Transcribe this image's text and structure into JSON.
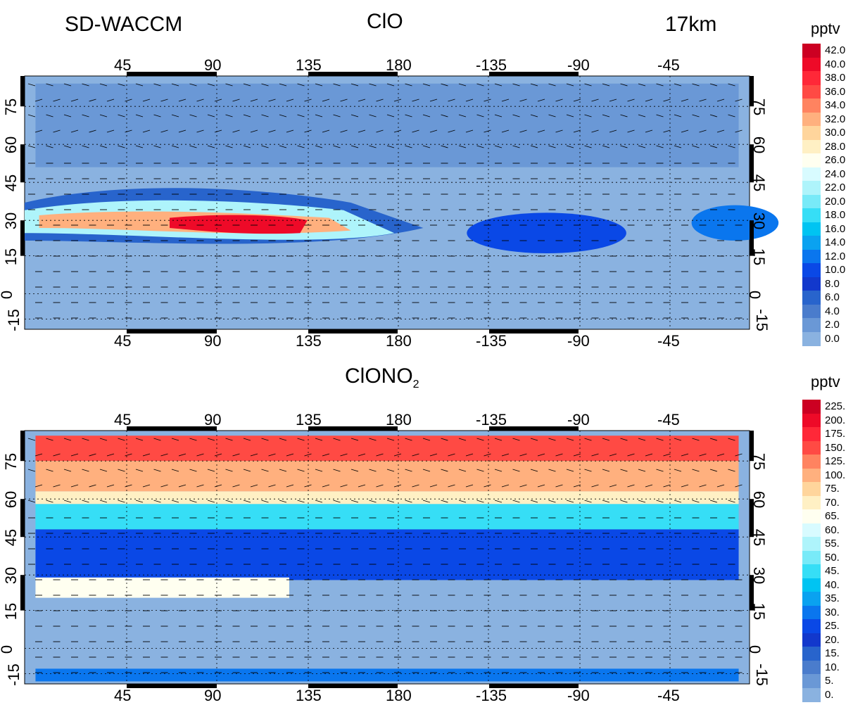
{
  "header": {
    "model": "SD-WACCM",
    "altitude": "17km"
  },
  "panels": [
    {
      "title": "ClO",
      "title_main": "ClO",
      "title_sub": "",
      "unit": "pptv",
      "top_lon_ticks": [
        "45",
        "90",
        "135",
        "180",
        "-135",
        "-90",
        "-45"
      ],
      "bottom_lon_ticks": [
        "45",
        "90",
        "135",
        "180",
        "-135",
        "-90",
        "-45"
      ],
      "left_lat_ticks": [
        "75",
        "60",
        "45",
        "30",
        "15",
        "0",
        "-15"
      ],
      "right_lat_ticks": [
        "75",
        "60",
        "45",
        "30",
        "15",
        "0",
        "-15"
      ],
      "colorbar_labels": [
        "42.0",
        "40.0",
        "38.0",
        "36.0",
        "34.0",
        "32.0",
        "30.0",
        "28.0",
        "26.0",
        "24.0",
        "22.0",
        "20.0",
        "18.0",
        "16.0",
        "14.0",
        "12.0",
        "10.0",
        "8.0",
        "6.0",
        "4.0",
        "2.0",
        "0.0"
      ]
    },
    {
      "title": "ClONO2",
      "title_main": "ClONO",
      "title_sub": "2",
      "unit": "pptv",
      "top_lon_ticks": [
        "45",
        "90",
        "135",
        "180",
        "-135",
        "-90",
        "-45"
      ],
      "bottom_lon_ticks": [
        "45",
        "90",
        "135",
        "180",
        "-135",
        "-90",
        "-45"
      ],
      "left_lat_ticks": [
        "75",
        "60",
        "45",
        "30",
        "15",
        "0",
        "-15"
      ],
      "right_lat_ticks": [
        "75",
        "60",
        "45",
        "30",
        "15",
        "0",
        "-15"
      ],
      "colorbar_labels": [
        "225.",
        "200.",
        "175.",
        "150.",
        "125.",
        "100.",
        "75.",
        "70.",
        "65.",
        "60.",
        "55.",
        "50.",
        "45.",
        "40.",
        "35.",
        "30.",
        "25.",
        "20.",
        "15.",
        "10.",
        "5.",
        "0."
      ]
    }
  ],
  "colors": {
    "scale": [
      "#cc0022",
      "#ee0a28",
      "#ff2838",
      "#ff4a44",
      "#ff8360",
      "#ffb07e",
      "#ffd59c",
      "#fff0c4",
      "#fffff0",
      "#d8fbff",
      "#aef4fb",
      "#78eaf8",
      "#36def6",
      "#00c4f2",
      "#0aa2f0",
      "#0a76ee",
      "#0a48e6",
      "#1238cc",
      "#2864cc",
      "#4a7ccc",
      "#6a98d6",
      "#8ab2e0"
    ],
    "background_fill": "#8ab2e0"
  }
}
